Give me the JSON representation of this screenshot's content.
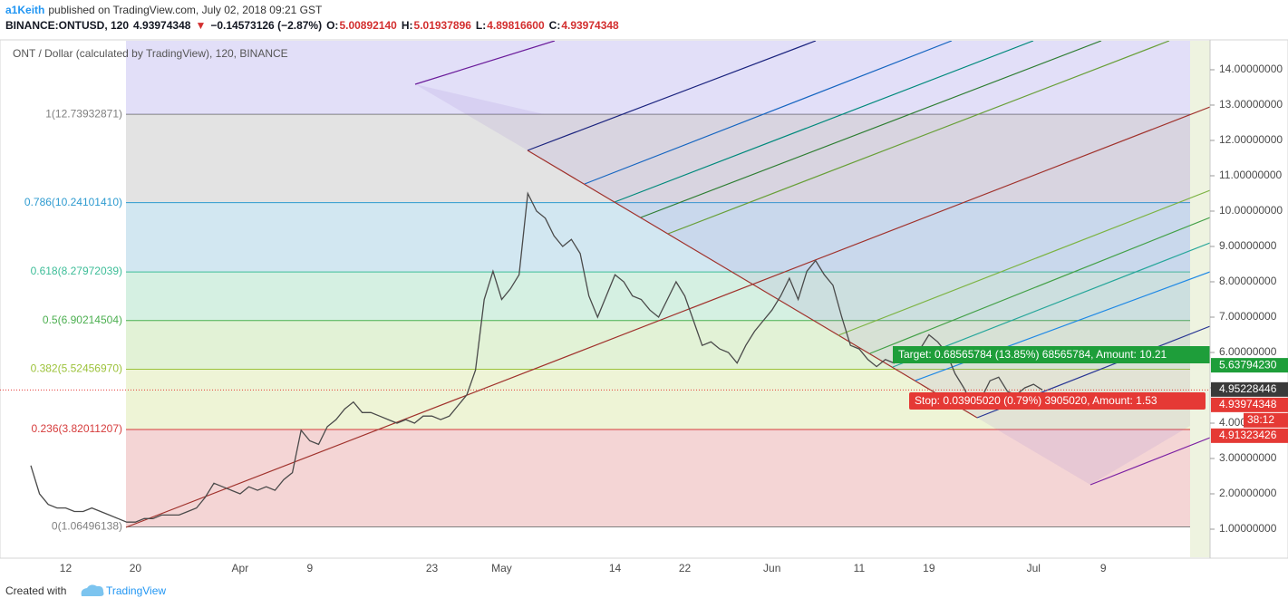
{
  "header": {
    "author": "a1Keith",
    "published": "published on TradingView.com, July 02, 2018 09:21 GST",
    "quote": [
      {
        "text": "BINANCE:ONTUSD, 120",
        "color": "#131722"
      },
      {
        "text": "4.93974348",
        "color": "#131722"
      },
      {
        "text": "▼",
        "color": "#d32f2f"
      },
      {
        "text": "−0.14573126 (−2.87%)",
        "color": "#131722"
      },
      {
        "text": "O:",
        "color": "#131722"
      },
      {
        "text": "5.00892140",
        "color": "#d32f2f"
      },
      {
        "text": "H:",
        "color": "#131722"
      },
      {
        "text": "5.01937896",
        "color": "#d32f2f"
      },
      {
        "text": "L:",
        "color": "#131722"
      },
      {
        "text": "4.89816600",
        "color": "#d32f2f"
      },
      {
        "text": "C:",
        "color": "#131722"
      },
      {
        "text": "4.93974348",
        "color": "#d32f2f"
      }
    ]
  },
  "chart_data": {
    "type": "line",
    "title": "ONT / Dollar (calculated by TradingView), 120, BINANCE",
    "color": "#4a4a4a",
    "categories": [
      null,
      null,
      null,
      null,
      "12",
      null,
      null,
      null,
      null,
      null,
      null,
      null,
      "20",
      null,
      null,
      null,
      null,
      null,
      null,
      null,
      null,
      null,
      null,
      null,
      "Apr",
      null,
      null,
      null,
      null,
      null,
      null,
      null,
      "9",
      null,
      null,
      null,
      null,
      null,
      null,
      null,
      null,
      null,
      null,
      null,
      null,
      null,
      "23",
      null,
      null,
      null,
      null,
      null,
      null,
      null,
      "May",
      null,
      null,
      null,
      null,
      null,
      null,
      null,
      null,
      null,
      null,
      null,
      null,
      "14",
      null,
      null,
      null,
      null,
      null,
      null,
      null,
      "22",
      null,
      null,
      null,
      null,
      null,
      null,
      null,
      null,
      null,
      "Jun",
      null,
      null,
      null,
      null,
      null,
      null,
      null,
      null,
      null,
      "11",
      null,
      null,
      null,
      null,
      null,
      null,
      null,
      "19",
      null,
      null,
      null,
      null,
      null,
      null,
      null,
      null,
      null,
      null,
      null,
      "Jul",
      null,
      null,
      null,
      null,
      null,
      null,
      null,
      "9"
    ],
    "values": [
      2.8,
      2.0,
      1.7,
      1.6,
      1.6,
      1.5,
      1.5,
      1.6,
      1.5,
      1.4,
      1.3,
      1.2,
      1.2,
      1.3,
      1.3,
      1.4,
      1.4,
      1.4,
      1.5,
      1.6,
      1.9,
      2.3,
      2.2,
      2.1,
      2.0,
      2.2,
      2.1,
      2.2,
      2.1,
      2.4,
      2.6,
      3.8,
      3.5,
      3.4,
      3.9,
      4.1,
      4.4,
      4.6,
      4.3,
      4.3,
      4.2,
      4.1,
      4.0,
      4.1,
      4.0,
      4.2,
      4.2,
      4.1,
      4.2,
      4.5,
      4.8,
      5.5,
      7.5,
      8.3,
      7.5,
      7.8,
      8.2,
      10.5,
      10.0,
      9.8,
      9.3,
      9.0,
      9.2,
      8.8,
      7.6,
      7.0,
      7.6,
      8.2,
      8.0,
      7.6,
      7.5,
      7.2,
      7.0,
      7.5,
      8.0,
      7.6,
      6.9,
      6.2,
      6.3,
      6.1,
      6.0,
      5.7,
      6.2,
      6.6,
      6.9,
      7.2,
      7.6,
      8.1,
      7.5,
      8.3,
      8.6,
      8.2,
      7.9,
      7.0,
      6.2,
      6.1,
      5.8,
      5.6,
      5.8,
      5.7,
      5.9,
      5.8,
      6.1,
      6.5,
      6.3,
      6.0,
      5.4,
      5.0,
      4.5,
      4.7,
      5.2,
      5.3,
      4.9,
      4.8,
      5.0,
      5.1,
      4.94,
      null,
      null,
      null,
      null,
      null,
      null,
      null
    ],
    "ylim": [
      0.205,
      14.82
    ],
    "yticks": [
      {
        "value": 1,
        "label": "1.00000000"
      },
      {
        "value": 2,
        "label": "2.00000000"
      },
      {
        "value": 3,
        "label": "3.00000000"
      },
      {
        "value": 4,
        "label": "4.00000000"
      },
      {
        "value": 5,
        "label": "5.00000000"
      },
      {
        "value": 6,
        "label": "6.00000000"
      },
      {
        "value": 7,
        "label": "7.00000000"
      },
      {
        "value": 8,
        "label": "8.00000000"
      },
      {
        "value": 9,
        "label": "9.00000000"
      },
      {
        "value": 10,
        "label": "10.00000000"
      },
      {
        "value": 11,
        "label": "11.00000000"
      },
      {
        "value": 12,
        "label": "12.00000000"
      },
      {
        "value": 13,
        "label": "13.00000000"
      },
      {
        "value": 14,
        "label": "14.00000000"
      }
    ],
    "fib_levels": [
      {
        "value": 12.73932871,
        "label": "1(12.73932871)",
        "color": "#808080",
        "band_color": "#e3e3e3"
      },
      {
        "value": 10.2410141,
        "label": "0.786(10.24101410)",
        "color": "#2e9bd0",
        "band_color": "#d2e7f1"
      },
      {
        "value": 8.27972039,
        "label": "0.618(8.27972039)",
        "color": "#3dbd98",
        "band_color": "#d5f0e2"
      },
      {
        "value": 6.90214504,
        "label": "0.5(6.90214504)",
        "color": "#4caf50",
        "band_color": "#e2f2d6"
      },
      {
        "value": 5.5245697,
        "label": "0.382(5.52456970)",
        "color": "#9cc23a",
        "band_color": "#eef4d6"
      },
      {
        "value": 3.82011207,
        "label": "0.236(3.82011207)",
        "color": "#d63c3c",
        "band_color": "#f4d5d5"
      },
      {
        "value": 1.06496138,
        "label": "0(1.06496138)",
        "color": "#808080"
      }
    ],
    "price_tags": [
      {
        "value": 5.6379423,
        "label": "5.63794230",
        "color": "#1e9e3a"
      },
      {
        "value": 4.95228446,
        "label": "4.95228446",
        "color": "#3a3a3a"
      },
      {
        "value": 4.93974348,
        "label": "4.93974348",
        "color": "#e53935"
      },
      {
        "value": 4.91323426,
        "label": "4.91323426",
        "color": "#e53935"
      }
    ],
    "countdown": "38:12",
    "target": "Target: 0.68565784 (13.85%) 68565784, Amount: 10.21",
    "stop": "Stop: 0.03905020 (0.79%) 3905020, Amount: 1.53"
  },
  "footer": {
    "created": "Created with",
    "brand": "TradingView"
  }
}
